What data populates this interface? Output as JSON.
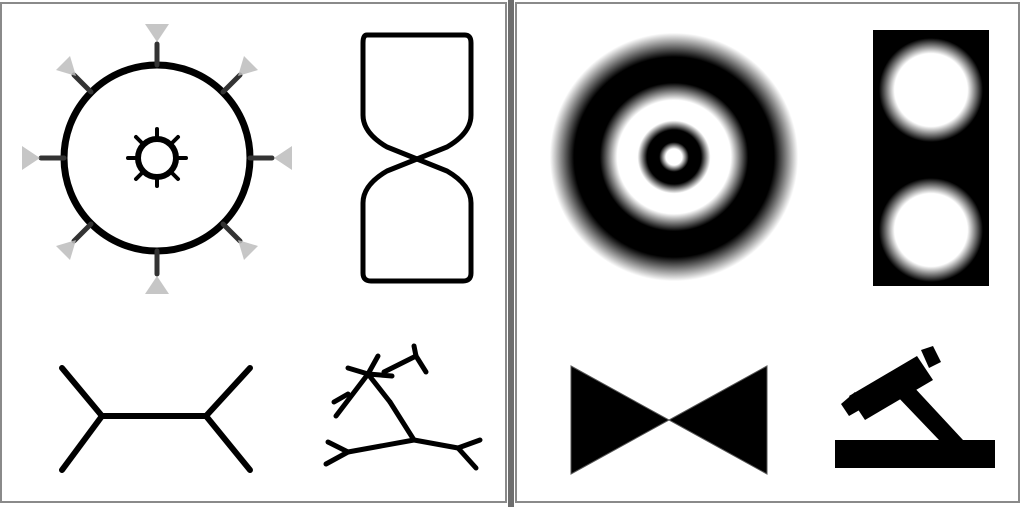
{
  "figures": {
    "left_panel": [
      {
        "icon": "skeleton-ring-with-spikes-icon"
      },
      {
        "icon": "figure-eight-outline-icon"
      },
      {
        "icon": "h-shaped-skeleton-icon"
      },
      {
        "icon": "branching-skeleton-icon"
      }
    ],
    "right_panel": [
      {
        "icon": "blurred-concentric-rings-icon"
      },
      {
        "icon": "two-blurred-discs-icon"
      },
      {
        "icon": "bowtie-shape-icon"
      },
      {
        "icon": "tilted-bar-on-base-icon"
      }
    ]
  },
  "colors": {
    "foreground": "#000000",
    "background": "#ffffff",
    "frame": "#8a8a8a",
    "divider": "#6e6e6e"
  }
}
